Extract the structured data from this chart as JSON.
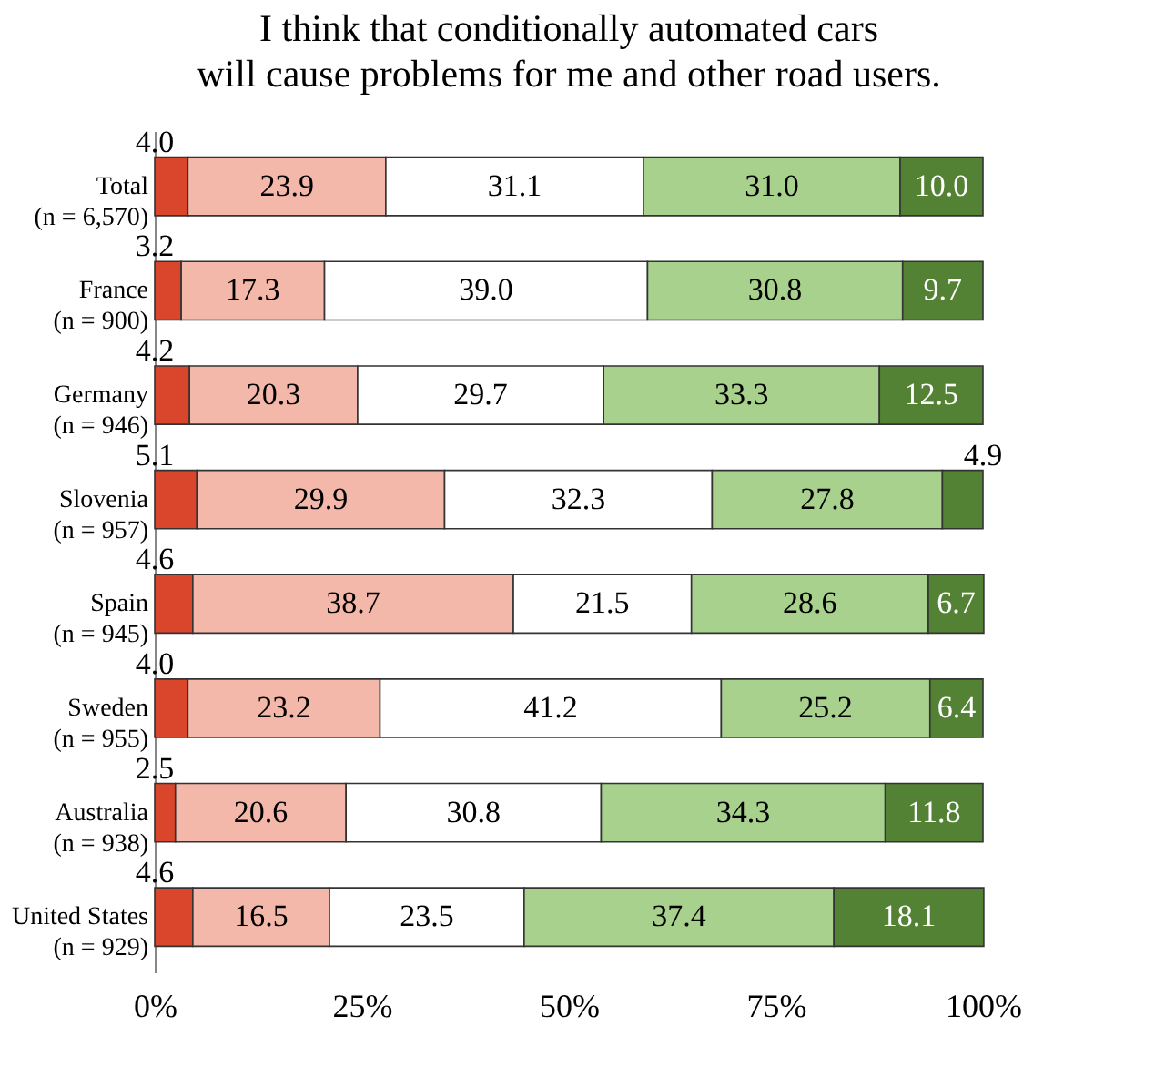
{
  "chart_data": {
    "type": "bar",
    "orientation": "horizontal",
    "stacked": true,
    "title": "I think that conditionally automated cars\nwill cause problems for me and other road users.",
    "categories": [
      "Total\n(n = 6,570)",
      "France\n(n = 900)",
      "Germany\n(n = 946)",
      "Slovenia\n(n = 957)",
      "Spain\n(n = 945)",
      "Sweden\n(n = 955)",
      "Australia\n(n = 938)",
      "United States\n(n = 929)"
    ],
    "series": [
      {
        "color": "#d9462b",
        "values": [
          4.0,
          3.2,
          4.2,
          5.1,
          4.6,
          4.0,
          2.5,
          4.6
        ],
        "value_labels": [
          "4.0",
          "3.2",
          "4.2",
          "5.1",
          "4.6",
          "4.0",
          "2.5",
          "4.6"
        ]
      },
      {
        "color": "#f4b8aa",
        "values": [
          23.9,
          17.3,
          20.3,
          29.9,
          38.7,
          23.2,
          20.6,
          16.5
        ],
        "value_labels": [
          "23.9",
          "17.3",
          "20.3",
          "29.9",
          "38.7",
          "23.2",
          "20.6",
          "16.5"
        ]
      },
      {
        "color": "#ffffff",
        "values": [
          31.1,
          39.0,
          29.7,
          32.3,
          21.5,
          41.2,
          30.8,
          23.5
        ],
        "value_labels": [
          "31.1",
          "39.0",
          "29.7",
          "32.3",
          "21.5",
          "41.2",
          "30.8",
          "23.5"
        ]
      },
      {
        "color": "#a9d18e",
        "values": [
          31.0,
          30.8,
          33.3,
          27.8,
          28.6,
          25.2,
          34.3,
          37.4
        ],
        "value_labels": [
          "31.0",
          "30.8",
          "33.3",
          "27.8",
          "28.6",
          "25.2",
          "34.3",
          "37.4"
        ]
      },
      {
        "color": "#548235",
        "values": [
          10.0,
          9.7,
          12.5,
          4.9,
          6.7,
          6.4,
          11.8,
          18.1
        ],
        "value_labels": [
          "10.0",
          "9.7",
          "12.5",
          "4.9",
          "6.7",
          "6.4",
          "11.8",
          "18.1"
        ]
      }
    ],
    "xlim": [
      0,
      100
    ],
    "xticks": [
      {
        "value": 0,
        "label": "0%"
      },
      {
        "value": 25,
        "label": "25%"
      },
      {
        "value": 50,
        "label": "50%"
      },
      {
        "value": 75,
        "label": "75%"
      },
      {
        "value": 100,
        "label": "100%"
      }
    ]
  }
}
